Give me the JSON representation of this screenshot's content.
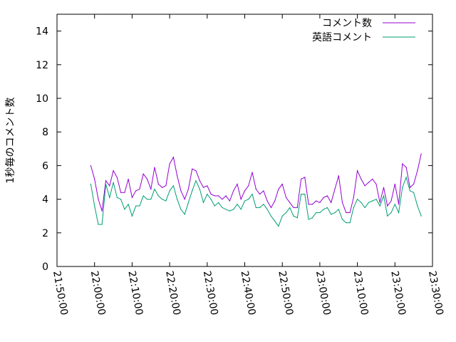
{
  "chart_data": {
    "type": "line",
    "ylabel": "1秒毎のコメント数",
    "xlabel": "",
    "ylim": [
      0,
      15
    ],
    "yticks": [
      0,
      2,
      4,
      6,
      8,
      10,
      12,
      14
    ],
    "xlim": [
      "21:50:00",
      "23:30:00"
    ],
    "xticks": [
      "21:50:00",
      "22:00:00",
      "22:10:00",
      "22:20:00",
      "22:30:00",
      "22:40:00",
      "22:50:00",
      "23:00:00",
      "23:10:00",
      "23:20:00",
      "23:30:00"
    ],
    "legend_position": "top-right",
    "series": [
      {
        "name": "コメント数",
        "color": "#9400d3",
        "x": [
          "21:59:00",
          "22:00:00",
          "22:01:00",
          "22:02:00",
          "22:03:00",
          "22:04:00",
          "22:05:00",
          "22:06:00",
          "22:07:00",
          "22:08:00",
          "22:09:00",
          "22:10:00",
          "22:11:00",
          "22:12:00",
          "22:13:00",
          "22:14:00",
          "22:15:00",
          "22:16:00",
          "22:17:00",
          "22:18:00",
          "22:19:00",
          "22:20:00",
          "22:21:00",
          "22:22:00",
          "22:23:00",
          "22:24:00",
          "22:25:00",
          "22:26:00",
          "22:27:00",
          "22:28:00",
          "22:29:00",
          "22:30:00",
          "22:31:00",
          "22:32:00",
          "22:33:00",
          "22:34:00",
          "22:35:00",
          "22:36:00",
          "22:37:00",
          "22:38:00",
          "22:39:00",
          "22:40:00",
          "22:41:00",
          "22:42:00",
          "22:43:00",
          "22:44:00",
          "22:45:00",
          "22:46:00",
          "22:47:00",
          "22:48:00",
          "22:49:00",
          "22:50:00",
          "22:51:00",
          "22:52:00",
          "22:53:00",
          "22:54:00",
          "22:55:00",
          "22:56:00",
          "22:57:00",
          "22:58:00",
          "22:59:00",
          "23:00:00",
          "23:01:00",
          "23:02:00",
          "23:03:00",
          "23:04:00",
          "23:05:00",
          "23:06:00",
          "23:07:00",
          "23:08:00",
          "23:09:00",
          "23:10:00",
          "23:11:00",
          "23:12:00",
          "23:13:00",
          "23:14:00",
          "23:15:00",
          "23:16:00",
          "23:17:00",
          "23:18:00",
          "23:19:00",
          "23:20:00",
          "23:21:00",
          "23:22:00",
          "23:23:00",
          "23:24:00",
          "23:25:00",
          "23:26:00",
          "23:27:00"
        ],
        "values": [
          6.0,
          5.2,
          4.0,
          3.3,
          5.1,
          4.8,
          5.7,
          5.3,
          4.4,
          4.4,
          5.2,
          4.1,
          4.5,
          4.6,
          5.5,
          5.2,
          4.6,
          5.9,
          4.9,
          4.7,
          4.8,
          6.1,
          6.5,
          5.4,
          4.5,
          4.0,
          4.6,
          5.8,
          5.7,
          5.1,
          4.7,
          4.8,
          4.3,
          4.2,
          4.2,
          4.0,
          4.2,
          3.9,
          4.5,
          4.9,
          4.0,
          4.5,
          4.8,
          5.6,
          4.6,
          4.3,
          4.5,
          3.9,
          3.5,
          3.9,
          4.6,
          4.9,
          4.1,
          3.8,
          3.5,
          3.5,
          5.2,
          5.3,
          3.7,
          3.7,
          3.9,
          3.8,
          4.1,
          4.2,
          3.8,
          4.6,
          5.4,
          3.8,
          3.2,
          3.2,
          4.1,
          5.7,
          5.2,
          4.8,
          5.0,
          5.2,
          4.9,
          3.8,
          4.7,
          3.6,
          3.9,
          4.9,
          3.7,
          6.1,
          5.9,
          4.7,
          4.9,
          5.7,
          6.7
        ]
      },
      {
        "name": "英語コメント",
        "color": "#009e73",
        "x": [
          "21:59:00",
          "22:00:00",
          "22:01:00",
          "22:02:00",
          "22:03:00",
          "22:04:00",
          "22:05:00",
          "22:06:00",
          "22:07:00",
          "22:08:00",
          "22:09:00",
          "22:10:00",
          "22:11:00",
          "22:12:00",
          "22:13:00",
          "22:14:00",
          "22:15:00",
          "22:16:00",
          "22:17:00",
          "22:18:00",
          "22:19:00",
          "22:20:00",
          "22:21:00",
          "22:22:00",
          "22:23:00",
          "22:24:00",
          "22:25:00",
          "22:26:00",
          "22:27:00",
          "22:28:00",
          "22:29:00",
          "22:30:00",
          "22:31:00",
          "22:32:00",
          "22:33:00",
          "22:34:00",
          "22:35:00",
          "22:36:00",
          "22:37:00",
          "22:38:00",
          "22:39:00",
          "22:40:00",
          "22:41:00",
          "22:42:00",
          "22:43:00",
          "22:44:00",
          "22:45:00",
          "22:46:00",
          "22:47:00",
          "22:48:00",
          "22:49:00",
          "22:50:00",
          "22:51:00",
          "22:52:00",
          "22:53:00",
          "22:54:00",
          "22:55:00",
          "22:56:00",
          "22:57:00",
          "22:58:00",
          "22:59:00",
          "23:00:00",
          "23:01:00",
          "23:02:00",
          "23:03:00",
          "23:04:00",
          "23:05:00",
          "23:06:00",
          "23:07:00",
          "23:08:00",
          "23:09:00",
          "23:10:00",
          "23:11:00",
          "23:12:00",
          "23:13:00",
          "23:14:00",
          "23:15:00",
          "23:16:00",
          "23:17:00",
          "23:18:00",
          "23:19:00",
          "23:20:00",
          "23:21:00",
          "23:22:00",
          "23:23:00",
          "23:24:00",
          "23:25:00",
          "23:26:00",
          "23:27:00"
        ],
        "values": [
          4.9,
          3.6,
          2.5,
          2.5,
          4.9,
          4.1,
          5.0,
          4.1,
          4.0,
          3.4,
          3.7,
          3.0,
          3.6,
          3.6,
          4.2,
          4.0,
          4.0,
          4.6,
          4.2,
          4.0,
          3.9,
          4.5,
          4.8,
          4.0,
          3.4,
          3.1,
          3.8,
          4.5,
          5.1,
          4.6,
          3.8,
          4.3,
          4.0,
          3.6,
          3.8,
          3.5,
          3.4,
          3.3,
          3.4,
          3.7,
          3.4,
          3.9,
          4.0,
          4.3,
          3.5,
          3.5,
          3.7,
          3.4,
          3.0,
          2.7,
          2.4,
          3.0,
          3.2,
          3.5,
          3.0,
          2.9,
          4.3,
          4.3,
          2.8,
          2.9,
          3.2,
          3.2,
          3.4,
          3.5,
          3.1,
          3.2,
          3.4,
          2.8,
          2.6,
          2.6,
          3.5,
          4.0,
          3.8,
          3.5,
          3.8,
          3.9,
          4.0,
          3.6,
          4.2,
          3.0,
          3.2,
          3.7,
          3.2,
          4.7,
          5.3,
          4.5,
          4.4,
          3.6,
          3.0
        ]
      }
    ]
  }
}
